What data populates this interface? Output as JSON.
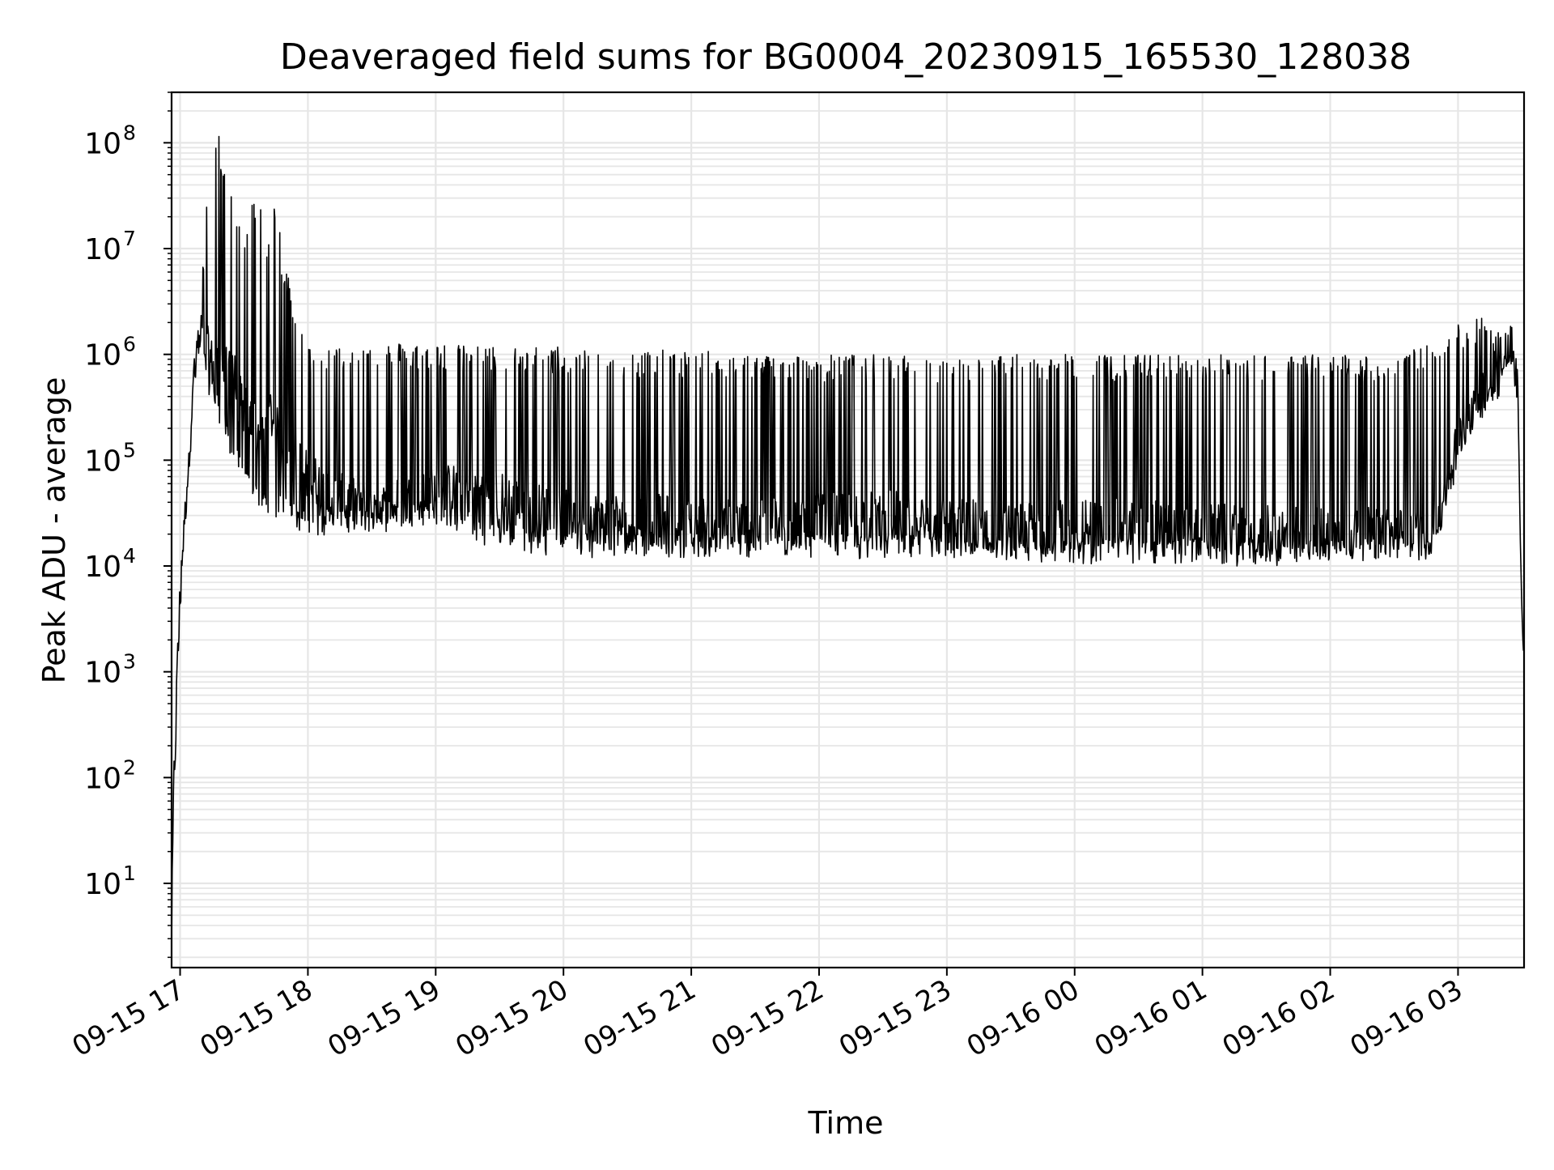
{
  "chart_data": {
    "type": "line",
    "title": "Deaveraged field sums for BG0004_20230915_165530_128038",
    "xlabel": "Time",
    "ylabel": "Peak ADU - average",
    "yscale": "log",
    "ylim": [
      1.6,
      300000000
    ],
    "xlim": [
      "2023-09-15 16:56",
      "2023-09-16 03:31"
    ],
    "x_ticks": [
      "09-15 17",
      "09-15 18",
      "09-15 19",
      "09-15 20",
      "09-15 21",
      "09-15 22",
      "09-15 23",
      "09-16 00",
      "09-16 01",
      "09-16 02",
      "09-16 03"
    ],
    "y_ticks": [
      {
        "base": "10",
        "exp": "1",
        "value": 10
      },
      {
        "base": "10",
        "exp": "2",
        "value": 100
      },
      {
        "base": "10",
        "exp": "3",
        "value": 1000
      },
      {
        "base": "10",
        "exp": "4",
        "value": 10000
      },
      {
        "base": "10",
        "exp": "5",
        "value": 100000
      },
      {
        "base": "10",
        "exp": "6",
        "value": 1000000
      },
      {
        "base": "10",
        "exp": "7",
        "value": 10000000
      },
      {
        "base": "10",
        "exp": "8",
        "value": 100000000
      }
    ],
    "grid": true,
    "line_color": "#000000",
    "grid_color": "#e6e6e6",
    "series": [
      {
        "x": [
          "2023-09-15 16:56",
          "2023-09-15 16:57",
          "2023-09-15 16:58",
          "2023-09-15 16:59",
          "2023-09-15 17:00",
          "2023-09-15 17:02",
          "2023-09-15 17:04",
          "2023-09-15 17:06",
          "2023-09-15 17:08",
          "2023-09-15 17:10",
          "2023-09-15 17:12",
          "2023-09-15 17:15",
          "2023-09-15 17:18",
          "2023-09-15 17:21",
          "2023-09-15 17:24",
          "2023-09-15 17:27",
          "2023-09-15 17:30",
          "2023-09-15 17:33",
          "2023-09-15 17:36",
          "2023-09-15 17:39",
          "2023-09-15 17:42",
          "2023-09-15 17:45",
          "2023-09-15 17:48",
          "2023-09-15 17:51",
          "2023-09-15 17:54",
          "2023-09-15 17:57",
          "2023-09-15 18:00",
          "2023-09-15 18:05",
          "2023-09-15 18:10",
          "2023-09-15 18:20",
          "2023-09-15 18:30",
          "2023-09-15 18:45",
          "2023-09-15 19:00",
          "2023-09-15 19:15",
          "2023-09-15 19:30",
          "2023-09-15 19:45",
          "2023-09-15 20:00",
          "2023-09-15 20:30",
          "2023-09-15 21:00",
          "2023-09-15 21:30",
          "2023-09-15 22:00",
          "2023-09-15 22:30",
          "2023-09-15 23:00",
          "2023-09-15 23:30",
          "2023-09-16 00:00",
          "2023-09-16 00:30",
          "2023-09-16 01:00",
          "2023-09-16 01:30",
          "2023-09-16 02:00",
          "2023-09-16 02:30",
          "2023-09-16 02:45",
          "2023-09-16 02:50",
          "2023-09-16 02:55",
          "2023-09-16 03:00",
          "2023-09-16 03:05",
          "2023-09-16 03:10",
          "2023-09-16 03:15",
          "2023-09-16 03:20",
          "2023-09-16 03:25",
          "2023-09-16 03:28",
          "2023-09-16 03:30",
          "2023-09-16 03:31"
        ],
        "y": [
          3,
          80,
          300,
          1500,
          5000,
          30000,
          100000,
          500000,
          1000000,
          1500000,
          1200000,
          800000,
          1500000,
          600000,
          1000000,
          400000,
          300000,
          250000,
          200000,
          150000,
          300000,
          200000,
          120000,
          100000,
          150000,
          80000,
          70000,
          60000,
          45000,
          40000,
          35000,
          40000,
          50000,
          55000,
          45000,
          35000,
          30000,
          28000,
          26000,
          25000,
          28000,
          30000,
          27000,
          22000,
          24000,
          25000,
          22000,
          21000,
          21000,
          20000,
          20000,
          25000,
          60000,
          150000,
          300000,
          400000,
          600000,
          800000,
          1400000,
          600000,
          3000,
          2000
        ],
        "upper": [
          5,
          120,
          500,
          3000,
          9000,
          60000,
          200000,
          900000,
          1800000,
          3000000,
          30000000,
          90000000,
          130000000,
          50000000,
          40000000,
          20000000,
          10000000,
          50000000,
          30000000,
          20000000,
          10000000,
          40000000,
          8000000,
          6000000,
          3000000,
          2000000,
          1200000,
          1200000,
          1200000,
          1200000,
          1300000,
          1300000,
          1300000,
          1200000,
          1200000,
          1200000,
          1200000,
          1100000,
          1100000,
          1000000,
          1000000,
          1000000,
          900000,
          1000000,
          1000000,
          1000000,
          1000000,
          1000000,
          1000000,
          1000000,
          1200000,
          1500000,
          1800000,
          2000000,
          1800000,
          2400000,
          2000000,
          1800000,
          1500000,
          700000,
          3500,
          2000
        ],
        "lower": [
          3,
          60,
          250,
          1200,
          4000,
          25000,
          80000,
          400000,
          800000,
          1000000,
          700000,
          400000,
          300000,
          200000,
          120000,
          90000,
          60000,
          50000,
          45000,
          40000,
          40000,
          35000,
          35000,
          30000,
          28000,
          26000,
          25000,
          24000,
          25000,
          24000,
          30000,
          32000,
          28000,
          22000,
          18000,
          16000,
          15000,
          15000,
          15000,
          15000,
          15000,
          14000,
          14000,
          13000,
          13000,
          13000,
          13000,
          12000,
          13000,
          15000,
          15000,
          18000,
          40000,
          100000,
          200000,
          300000,
          400000,
          500000,
          1000000,
          400000,
          2500,
          1800
        ]
      }
    ]
  }
}
